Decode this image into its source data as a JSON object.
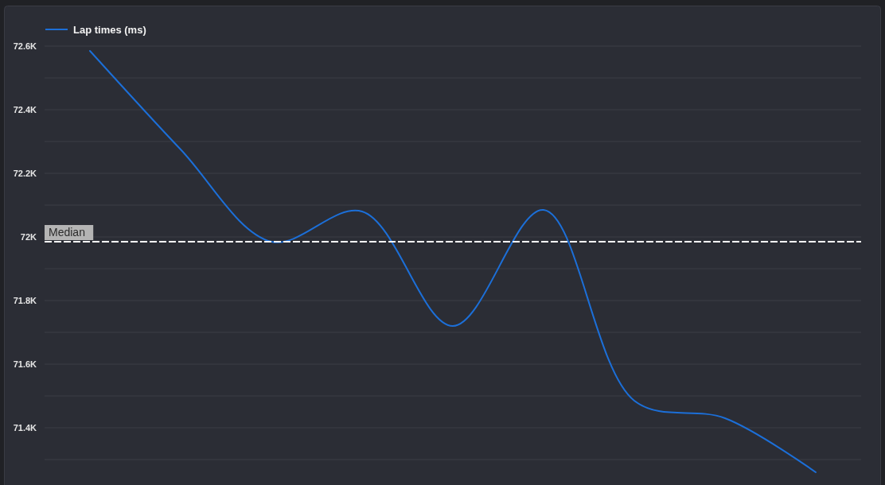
{
  "chart_data": {
    "type": "line",
    "categories": [
      null,
      null,
      null,
      null,
      null,
      null,
      null,
      null,
      null
    ],
    "series": [
      {
        "name": "Lap times (ms)",
        "color": "#1c6fd8",
        "values": [
          72585,
          72275,
          71985,
          72080,
          71720,
          72085,
          71485,
          71430,
          71260
        ]
      }
    ],
    "ylim": [
      71220,
      72600
    ],
    "yticks": [
      {
        "value": 72600,
        "label": "72.6K"
      },
      {
        "value": 72500,
        "label": null
      },
      {
        "value": 72400,
        "label": "72.4K"
      },
      {
        "value": 72300,
        "label": null
      },
      {
        "value": 72200,
        "label": "72.2K"
      },
      {
        "value": 72100,
        "label": null
      },
      {
        "value": 72000,
        "label": "72K"
      },
      {
        "value": 71900,
        "label": null
      },
      {
        "value": 71800,
        "label": "71.8K"
      },
      {
        "value": 71700,
        "label": null
      },
      {
        "value": 71600,
        "label": "71.6K"
      },
      {
        "value": 71500,
        "label": null
      },
      {
        "value": 71400,
        "label": "71.4K"
      },
      {
        "value": 71300,
        "label": null
      }
    ],
    "grid": "y",
    "tick_labels": "y",
    "legend": "top left",
    "ref_lines": [
      {
        "axis": "y",
        "value": 71985,
        "label": "Median",
        "color": "#ffffff",
        "line_style": "dashed"
      }
    ]
  }
}
